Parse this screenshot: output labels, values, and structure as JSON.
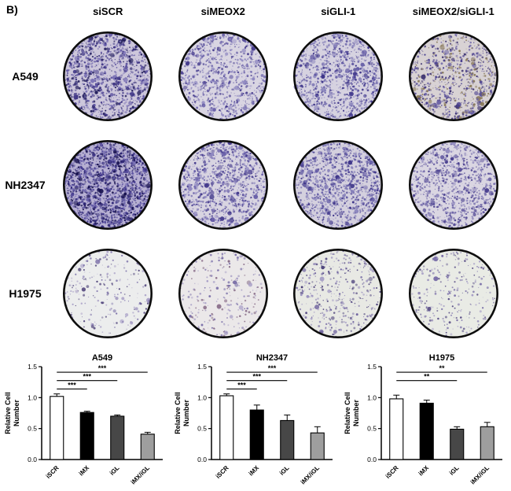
{
  "panel_label": "B)",
  "columns": [
    "siSCR",
    "siMEOX2",
    "siGLI-1",
    "siMEOX2/siGLI-1"
  ],
  "rows": [
    "A549",
    "NH2347",
    "H1975"
  ],
  "wells_grid": [
    [
      {
        "density": 1300,
        "bg": "#cdc7db",
        "dots": [
          "#3c3383",
          "#5b51a0",
          "#7c73b6",
          "#241f5e"
        ]
      },
      {
        "density": 950,
        "bg": "#d9d5e2",
        "dots": [
          "#453b8d",
          "#6a61a9",
          "#8e87c0"
        ]
      },
      {
        "density": 1050,
        "bg": "#d6d2e0",
        "dots": [
          "#3f368a",
          "#6159a4",
          "#8781ba"
        ]
      },
      {
        "density": 900,
        "bg": "#d8d2d4",
        "dots": [
          "#483e8e",
          "#6d64a6",
          "#8a7a5a",
          "#3a2f6e"
        ]
      }
    ],
    [
      {
        "density": 1900,
        "bg": "#b7b0d2",
        "dots": [
          "#2e2775",
          "#453b92",
          "#150f4d",
          "#6a61ab"
        ]
      },
      {
        "density": 1100,
        "bg": "#d8d4e1",
        "dots": [
          "#443a8c",
          "#675ea8",
          "#8d86bf"
        ]
      },
      {
        "density": 1250,
        "bg": "#d4d0de",
        "dots": [
          "#3f368a",
          "#6159a4",
          "#8781ba"
        ]
      },
      {
        "density": 1000,
        "bg": "#dad6e2",
        "dots": [
          "#483e8e",
          "#6d64a6",
          "#9089bd"
        ]
      }
    ],
    [
      {
        "density": 240,
        "bg": "#eceded",
        "dots": [
          "#7a6fa8",
          "#a79ec6",
          "#55497e"
        ]
      },
      {
        "density": 280,
        "bg": "#ebe8e9",
        "dots": [
          "#7a6fa8",
          "#a79ec6",
          "#8a6f8a"
        ]
      },
      {
        "density": 400,
        "bg": "#e8e9e4",
        "dots": [
          "#6f639f",
          "#9c93c0",
          "#4a3f7a"
        ]
      },
      {
        "density": 280,
        "bg": "#e9ebe5",
        "dots": [
          "#7a6fa8",
          "#a79ec6",
          "#5c5188"
        ]
      }
    ]
  ],
  "chart_data": [
    {
      "type": "bar",
      "title": "A549",
      "ylabel": "Relative Cell Number",
      "categories": [
        "iSCR",
        "iMX",
        "iGL",
        "iMX/iGL"
      ],
      "values": [
        1.02,
        0.76,
        0.7,
        0.41
      ],
      "errors": [
        0.04,
        0.02,
        0.02,
        0.03
      ],
      "ylim": [
        0,
        1.5
      ],
      "yticks": [
        0.0,
        0.5,
        1.0,
        1.5
      ],
      "bar_colors": [
        "#ffffff",
        "#000000",
        "#474747",
        "#9e9e9e"
      ],
      "significance": [
        {
          "from": 0,
          "to": 1,
          "label": "***"
        },
        {
          "from": 0,
          "to": 2,
          "label": "***"
        },
        {
          "from": 0,
          "to": 3,
          "label": "***"
        }
      ]
    },
    {
      "type": "bar",
      "title": "NH2347",
      "ylabel": "Relative Cell Number",
      "categories": [
        "iSCR",
        "iMX",
        "iGL",
        "iMX/iGL"
      ],
      "values": [
        1.03,
        0.8,
        0.63,
        0.43
      ],
      "errors": [
        0.03,
        0.08,
        0.09,
        0.1
      ],
      "ylim": [
        0,
        1.5
      ],
      "yticks": [
        0.0,
        0.5,
        1.0,
        1.5
      ],
      "bar_colors": [
        "#ffffff",
        "#000000",
        "#474747",
        "#9e9e9e"
      ],
      "significance": [
        {
          "from": 0,
          "to": 1,
          "label": "***"
        },
        {
          "from": 0,
          "to": 2,
          "label": "***"
        },
        {
          "from": 0,
          "to": 3,
          "label": "***"
        }
      ]
    },
    {
      "type": "bar",
      "title": "H1975",
      "ylabel": "Relative Cell Number",
      "categories": [
        "iSCR",
        "iMX",
        "iGL",
        "iMX/iGL"
      ],
      "values": [
        0.98,
        0.91,
        0.49,
        0.53
      ],
      "errors": [
        0.06,
        0.05,
        0.04,
        0.07
      ],
      "ylim": [
        0,
        1.5
      ],
      "yticks": [
        0.0,
        0.5,
        1.0,
        1.5
      ],
      "bar_colors": [
        "#ffffff",
        "#000000",
        "#474747",
        "#9e9e9e"
      ],
      "significance": [
        {
          "from": 0,
          "to": 2,
          "label": "**"
        },
        {
          "from": 0,
          "to": 3,
          "label": "**"
        }
      ]
    }
  ]
}
